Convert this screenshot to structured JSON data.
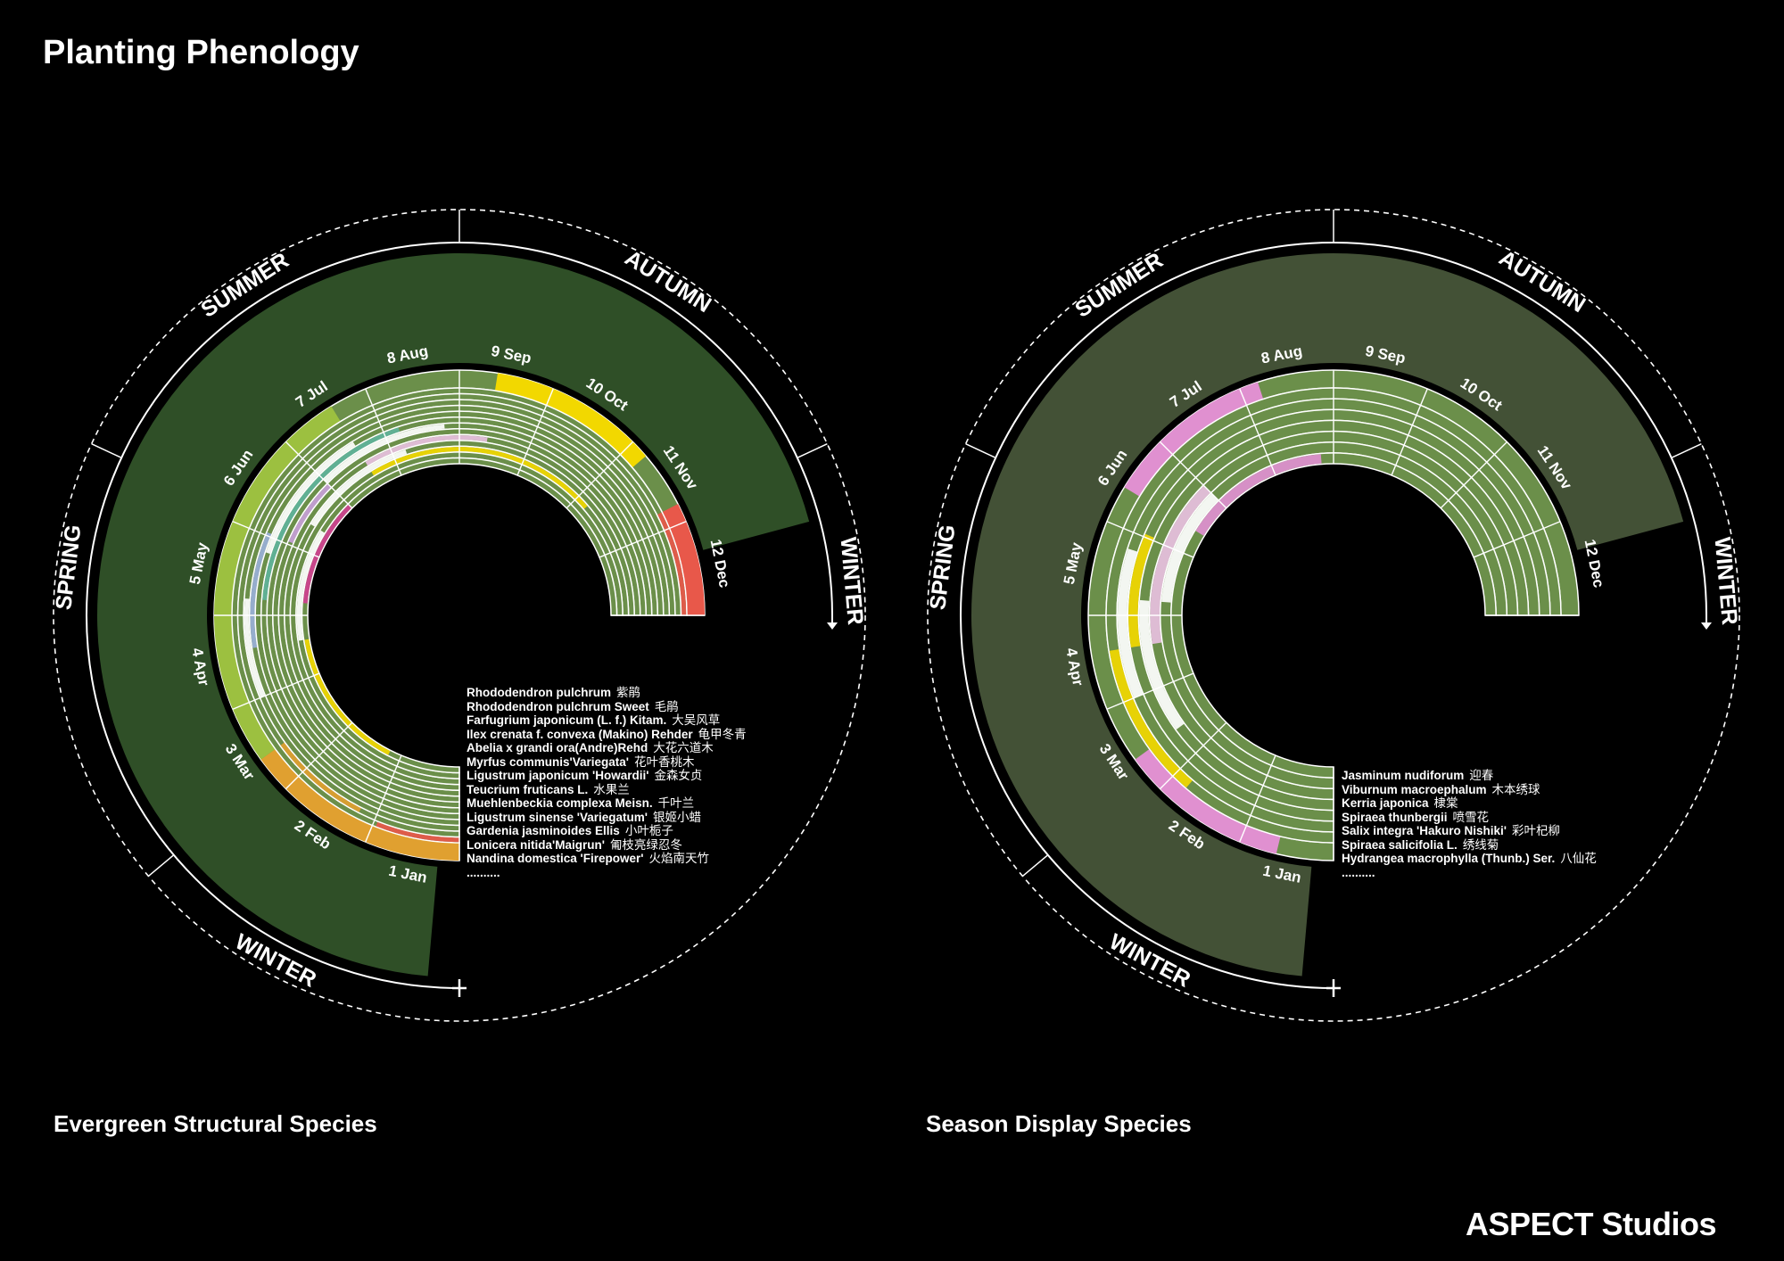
{
  "title": "Planting Phenology",
  "brand": "ASPECT Studios",
  "colors": {
    "background": "#000000",
    "base_ring": "#6b8f4a",
    "ring_gap": "#ffffff",
    "outline": "#ffffff"
  },
  "panels": [
    {
      "caption": "Evergreen Structural Species",
      "seasons": [
        "SUMMER",
        "AUTUMN",
        "WINTER",
        "SPRING",
        "WINTER"
      ],
      "months": [
        "1 Jan",
        "2 Feb",
        "3 Mar",
        "4 Apr",
        "5 May",
        "6 Jun",
        "7 Jul",
        "8 Aug",
        "9 Sep",
        "10 Oct",
        "11 Nov",
        "12 Dec"
      ],
      "species": [
        {
          "name": "Rhododendron pulchrum",
          "cn": "紫鹃"
        },
        {
          "name": "Rhododendron pulchrum Sweet",
          "cn": "毛鹃"
        },
        {
          "name": "Farfugrium japonicum (L. f.) Kitam.",
          "cn": "大吴风草"
        },
        {
          "name": "Ilex crenata f. convexa (Makino) Rehder",
          "cn": "龟甲冬青"
        },
        {
          "name": "Abelia x grandi  ora(Andre)Rehd",
          "cn": "大花六道木"
        },
        {
          "name": "Myrfus communis'Variegata'",
          "cn": "花叶香桃木"
        },
        {
          "name": "Ligustrum japonicum 'Howardii'",
          "cn": "金森女贞"
        },
        {
          "name": "Teucrium fruticans L.",
          "cn": "水果兰"
        },
        {
          "name": "Muehlenbeckia complexa Meisn.",
          "cn": "千叶兰"
        },
        {
          "name": "Ligustrum sinense 'Variegatum'",
          "cn": "银姬小蜡"
        },
        {
          "name": "Gardenia jasminoides Ellis",
          "cn": "小叶栀子"
        },
        {
          "name": "Lonicera nitida'Maigrun'",
          "cn": "匍枝亮绿忍冬"
        },
        {
          "name": "Nandina domestica 'Firepower'",
          "cn": "火焰南天竹"
        },
        {
          "name": "..........",
          "cn": ""
        }
      ],
      "bands": [
        [
          {
            "from": 0.0,
            "to": 0.08,
            "color": "#e8584a"
          },
          {
            "from": 0.9,
            "to": 1.0,
            "color": "#e8584a"
          }
        ],
        [
          {
            "from": 0.1,
            "to": 0.2,
            "color": "#e0a030"
          }
        ],
        [
          {
            "from": 0.25,
            "to": 0.35,
            "color": "#ffffff"
          }
        ],
        [
          {
            "from": 0.3,
            "to": 0.42,
            "color": "#9ab0d8"
          }
        ],
        [
          {
            "from": 0.4,
            "to": 0.55,
            "color": "#ffffff"
          }
        ],
        [
          {
            "from": 0.35,
            "to": 0.6,
            "color": "#5fb39a"
          }
        ],
        [
          {
            "from": 0.5,
            "to": 0.65,
            "color": "#ffffff"
          }
        ],
        [
          {
            "from": 0.42,
            "to": 0.5,
            "color": "#c8a0d8"
          }
        ],
        [
          {
            "from": 0.55,
            "to": 0.7,
            "color": "#e8c0e0"
          }
        ],
        [
          {
            "from": 0.45,
            "to": 0.6,
            "color": "#ffffff"
          }
        ],
        [
          {
            "from": 0.55,
            "to": 0.85,
            "color": "#f2d800"
          }
        ],
        [
          {
            "from": 0.3,
            "to": 0.45,
            "color": "#ffffff"
          }
        ],
        [
          {
            "from": 0.1,
            "to": 0.3,
            "color": "#f2d800"
          },
          {
            "from": 0.35,
            "to": 0.5,
            "color": "#d04090"
          }
        ]
      ],
      "outer_band": [
        {
          "from": 0.0,
          "to": 0.2,
          "color": "#e0a030"
        },
        {
          "from": 0.2,
          "to": 0.55,
          "color": "#9cc040"
        },
        {
          "from": 0.7,
          "to": 0.85,
          "color": "#f2d800"
        },
        {
          "from": 0.9,
          "to": 1.0,
          "color": "#e8584a"
        }
      ]
    },
    {
      "caption": "Season Display Species",
      "seasons": [
        "SUMMER",
        "AUTUMN",
        "WINTER",
        "SPRING",
        "WINTER"
      ],
      "months": [
        "1 Jan",
        "2 Feb",
        "3 Mar",
        "4 Apr",
        "5 May",
        "6 Jun",
        "7 Jul",
        "8 Aug",
        "9 Sep",
        "10 Oct",
        "11 Nov",
        "12 Dec"
      ],
      "species": [
        {
          "name": "Jasminum nudiforum",
          "cn": "迎春"
        },
        {
          "name": "Viburnum macroephalum",
          "cn": "木本绣球"
        },
        {
          "name": "Kerria japonica",
          "cn": "棣棠"
        },
        {
          "name": "Spiraea thunbergii",
          "cn": "喷雪花"
        },
        {
          "name": "Salix integra 'Hakuro Nishiki'",
          "cn": "彩叶杞柳"
        },
        {
          "name": "Spiraea salicifolia L.",
          "cn": "绣线菊"
        },
        {
          "name": "Hydrangea macrophylla (Thunb.) Ser.",
          "cn": "八仙花"
        },
        {
          "name": "..........",
          "cn": ""
        }
      ],
      "bands": [
        [
          {
            "from": 0.15,
            "to": 0.3,
            "color": "#f2d800"
          }
        ],
        [
          {
            "from": 0.25,
            "to": 0.4,
            "color": "#ffffff"
          }
        ],
        [
          {
            "from": 0.3,
            "to": 0.42,
            "color": "#f2d800"
          }
        ],
        [
          {
            "from": 0.2,
            "to": 0.35,
            "color": "#ffffff"
          }
        ],
        [
          {
            "from": 0.3,
            "to": 0.5,
            "color": "#e8c0e0"
          }
        ],
        [
          {
            "from": 0.35,
            "to": 0.5,
            "color": "#ffffff"
          }
        ],
        [
          {
            "from": 0.45,
            "to": 0.65,
            "color": "#e090d0"
          }
        ]
      ],
      "outer_band": [
        {
          "from": 0.05,
          "to": 0.2,
          "color": "#e090d0"
        },
        {
          "from": 0.45,
          "to": 0.6,
          "color": "#e090d0"
        }
      ]
    }
  ]
}
